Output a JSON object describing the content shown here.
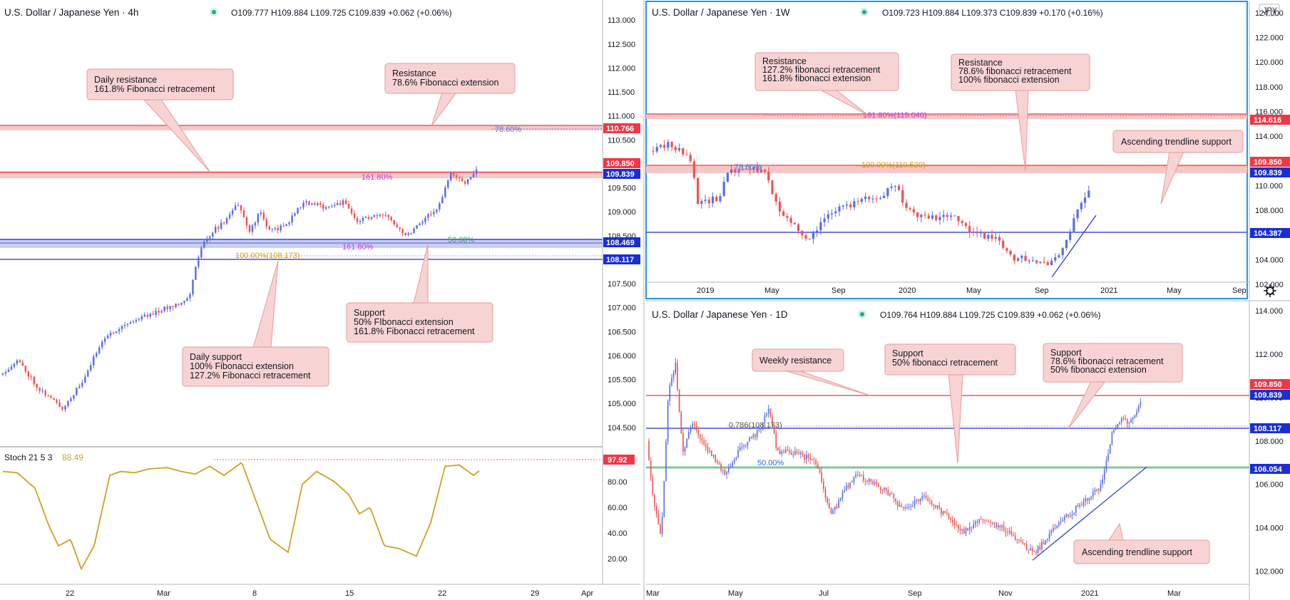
{
  "colors": {
    "up": "#5b6ee8",
    "down": "#ef5350",
    "resistance": "#e03c3c",
    "support": "#1f2fd6",
    "zone_red": "#f7c6c6",
    "zone_blue": "#c9cff5",
    "box_fill": "#f8d3d3",
    "box_stroke": "#e89a9a",
    "stoch": "#c9a227",
    "fib_pink": "#c23bd4",
    "fib_orange": "#d99a00",
    "fib_blue": "#5a7bd8",
    "fib_green": "#2e9e4f",
    "badge_red": "#f23645",
    "badge_blue": "#1a2ed6",
    "active_border": "#2196f3"
  },
  "panels": {
    "h4": {
      "title": "U.S. Dollar / Japanese Yen · 4h",
      "ohlc": "O109.777 H109.884 L109.725 C109.839 +0.062 (+0.06%)",
      "x_ticks": [
        "22",
        "Mar",
        "8",
        "15",
        "22",
        "29",
        "Apr"
      ],
      "y_ticks": [
        "113.000",
        "112.500",
        "112.000",
        "111.500",
        "111.000",
        "110.500",
        "110.000",
        "109.500",
        "109.000",
        "108.500",
        "108.000",
        "107.500",
        "107.000",
        "106.500",
        "106.000",
        "105.500",
        "105.000",
        "104.500"
      ],
      "badges": [
        "110.766",
        "109.850",
        "109.839",
        "108.469",
        "108.117"
      ],
      "fib_labels": [
        "78.60%",
        "161.80%",
        "161.80%",
        "50.00%",
        "100.00%(108.173)"
      ],
      "boxes": {
        "daily_resistance": [
          "Daily resistance",
          "161.8% Fibonacci retracement"
        ],
        "resistance": [
          "Resistance",
          "78.6% Fibonacci extension"
        ],
        "support": [
          "Support",
          "50% FIbonacci extension",
          "161.8% Fibonacci retracement"
        ],
        "daily_support": [
          "Daily support",
          "100% Fibonacci extension",
          "127.2% Fibonacci retracement"
        ]
      },
      "stoch": {
        "title": "Stoch 21 5 3",
        "value": "88.49",
        "badge": "97.92",
        "y_ticks": [
          "80.00",
          "60.00",
          "40.00",
          "20.00"
        ]
      }
    },
    "w1": {
      "title": "U.S. Dollar / Japanese Yen · 1W",
      "ohlc": "O109.723 H109.884 L109.373 C109.839 +0.170 (+0.16%)",
      "currency": "JPY",
      "x_ticks": [
        "2019",
        "May",
        "Sep",
        "2020",
        "May",
        "Sep",
        "2021",
        "May",
        "Sep"
      ],
      "y_ticks": [
        "124.000",
        "122.000",
        "120.000",
        "118.000",
        "116.000",
        "114.000",
        "112.000",
        "110.000",
        "108.000",
        "106.000",
        "104.000",
        "102.000"
      ],
      "badges": [
        "114.616",
        "109.850",
        "109.839",
        "104.387"
      ],
      "fib_labels": [
        "161.80%(115.040)",
        "100.00%(110.520)",
        "78.60%"
      ],
      "boxes": {
        "resistance_left": [
          "Resistance",
          "127.2% fibonacci retracement",
          "161.8% fibonacci extension"
        ],
        "resistance_right": [
          "Resistance",
          "78.6% fibonacci retracement",
          "100% fibonacci extension"
        ],
        "trendline": [
          "Ascending trendline support"
        ]
      }
    },
    "d1": {
      "title": "U.S. Dollar / Japanese Yen · 1D",
      "ohlc": "O109.764 H109.884 L109.725 C109.839 +0.062 (+0.06%)",
      "x_ticks": [
        "Mar",
        "May",
        "Jul",
        "Sep",
        "Nov",
        "2021",
        "Mar"
      ],
      "y_ticks": [
        "114.000",
        "112.000",
        "110.000",
        "108.000",
        "106.000",
        "104.000",
        "102.000"
      ],
      "badges": [
        "109.850",
        "109.839",
        "108.117",
        "106.054"
      ],
      "fib_labels": [
        "0.786(108.173)",
        "50.00%"
      ],
      "boxes": {
        "weekly_resistance": [
          "Weekly resistance"
        ],
        "support_50": [
          "Support",
          "50% fibonacci retracement"
        ],
        "support_786": [
          "Support",
          "78.6% fibonacci retracement",
          "50% fibonacci extension"
        ],
        "trendline": [
          "Ascending trendline support"
        ]
      }
    }
  },
  "chart_data": [
    {
      "type": "candlestick",
      "name": "h4",
      "title": "U.S. Dollar / Japanese Yen · 4h",
      "ylim": [
        104.2,
        113.3
      ],
      "x_ticks": [
        "22",
        "Mar",
        "8",
        "15",
        "22",
        "29",
        "Apr"
      ],
      "anchors": [
        [
          0,
          105.6
        ],
        [
          25,
          105.9
        ],
        [
          55,
          105.3
        ],
        [
          88,
          104.9
        ],
        [
          118,
          105.5
        ],
        [
          142,
          106.3
        ],
        [
          168,
          106.6
        ],
        [
          198,
          106.8
        ],
        [
          235,
          107.0
        ],
        [
          265,
          107.2
        ],
        [
          280,
          108.2
        ],
        [
          298,
          108.6
        ],
        [
          316,
          108.8
        ],
        [
          332,
          109.2
        ],
        [
          350,
          108.6
        ],
        [
          365,
          109.0
        ],
        [
          378,
          108.6
        ],
        [
          400,
          108.7
        ],
        [
          425,
          109.2
        ],
        [
          455,
          109.1
        ],
        [
          482,
          109.2
        ],
        [
          500,
          108.8
        ],
        [
          520,
          108.9
        ],
        [
          545,
          108.9
        ],
        [
          570,
          108.5
        ],
        [
          590,
          108.8
        ],
        [
          615,
          109.1
        ],
        [
          632,
          109.8
        ],
        [
          650,
          109.6
        ],
        [
          668,
          109.84
        ]
      ],
      "zones": [
        [
          110.73,
          110.82
        ],
        [
          109.82,
          109.89
        ],
        [
          108.35,
          108.48
        ]
      ],
      "lines": [
        108.117,
        108.47
      ],
      "stoch": {
        "ylim": [
          0,
          100
        ],
        "value": 88.49,
        "anchors": [
          [
            0,
            88
          ],
          [
            20,
            87
          ],
          [
            45,
            75
          ],
          [
            65,
            45
          ],
          [
            78,
            30
          ],
          [
            95,
            35
          ],
          [
            110,
            12
          ],
          [
            128,
            30
          ],
          [
            150,
            85
          ],
          [
            165,
            88
          ],
          [
            185,
            87
          ],
          [
            205,
            90
          ],
          [
            230,
            91
          ],
          [
            250,
            88
          ],
          [
            270,
            86
          ],
          [
            290,
            92
          ],
          [
            310,
            85
          ],
          [
            335,
            95
          ],
          [
            355,
            65
          ],
          [
            375,
            35
          ],
          [
            400,
            25
          ],
          [
            420,
            78
          ],
          [
            440,
            88
          ],
          [
            465,
            80
          ],
          [
            485,
            70
          ],
          [
            500,
            55
          ],
          [
            515,
            60
          ],
          [
            535,
            30
          ],
          [
            555,
            28
          ],
          [
            580,
            22
          ],
          [
            600,
            48
          ],
          [
            620,
            92
          ],
          [
            640,
            93
          ],
          [
            660,
            85
          ],
          [
            668,
            88.49
          ]
        ]
      }
    },
    {
      "type": "candlestick",
      "name": "w1",
      "title": "U.S. Dollar / Japanese Yen · 1W",
      "ylim": [
        100.8,
        124.8
      ],
      "x_ticks": [
        "2019",
        "May",
        "Sep",
        "2020",
        "May",
        "Sep",
        "2021",
        "May",
        "Sep"
      ],
      "anchors": [
        [
          4,
          112.8
        ],
        [
          35,
          113.4
        ],
        [
          62,
          112.0
        ],
        [
          72,
          108.5
        ],
        [
          100,
          109.0
        ],
        [
          115,
          111.0
        ],
        [
          145,
          111.5
        ],
        [
          168,
          110.8
        ],
        [
          185,
          108.0
        ],
        [
          215,
          106.5
        ],
        [
          225,
          105.5
        ],
        [
          260,
          108.0
        ],
        [
          300,
          108.8
        ],
        [
          330,
          109.2
        ],
        [
          350,
          110.2
        ],
        [
          360,
          108.5
        ],
        [
          375,
          107.8
        ],
        [
          395,
          107.2
        ],
        [
          420,
          107.8
        ],
        [
          450,
          106.5
        ],
        [
          470,
          106.0
        ],
        [
          495,
          105.5
        ],
        [
          515,
          104.2
        ],
        [
          550,
          104.0
        ],
        [
          565,
          103.5
        ],
        [
          585,
          104.8
        ],
        [
          600,
          107.5
        ],
        [
          615,
          109.0
        ],
        [
          620,
          109.84
        ]
      ],
      "zones": [
        [
          114.55,
          114.95
        ],
        [
          109.6,
          110.25
        ]
      ],
      "lines": [
        104.387
      ],
      "trendline": [
        [
          563,
          102.6
        ],
        [
          625,
          107.6
        ]
      ]
    },
    {
      "type": "candlestick",
      "name": "d1",
      "title": "U.S. Dollar / Japanese Yen · 1D",
      "ylim": [
        100.6,
        114.4
      ],
      "x_ticks": [
        "Mar",
        "May",
        "Jul",
        "Sep",
        "Nov",
        "2021",
        "Mar"
      ],
      "anchors": [
        [
          2,
          108.0
        ],
        [
          10,
          105.5
        ],
        [
          22,
          103.5
        ],
        [
          32,
          110.2
        ],
        [
          42,
          111.5
        ],
        [
          52,
          107.5
        ],
        [
          65,
          108.8
        ],
        [
          90,
          107.5
        ],
        [
          110,
          106.5
        ],
        [
          130,
          107.5
        ],
        [
          160,
          108.5
        ],
        [
          172,
          109.5
        ],
        [
          185,
          107.5
        ],
        [
          210,
          107.5
        ],
        [
          240,
          107.0
        ],
        [
          260,
          104.5
        ],
        [
          275,
          105.5
        ],
        [
          295,
          106.5
        ],
        [
          320,
          106.0
        ],
        [
          345,
          105.5
        ],
        [
          360,
          104.8
        ],
        [
          390,
          105.5
        ],
        [
          420,
          104.6
        ],
        [
          445,
          103.8
        ],
        [
          470,
          104.5
        ],
        [
          500,
          104.0
        ],
        [
          530,
          103.2
        ],
        [
          545,
          102.8
        ],
        [
          570,
          103.8
        ],
        [
          600,
          104.8
        ],
        [
          625,
          105.5
        ],
        [
          640,
          106.0
        ],
        [
          655,
          108.5
        ],
        [
          670,
          109.0
        ],
        [
          680,
          108.8
        ],
        [
          694,
          109.84
        ]
      ],
      "zones": [
        [
          106.0,
          106.1
        ]
      ],
      "lines": [
        109.85,
        108.117,
        106.054
      ],
      "trendline": [
        [
          540,
          102.5
        ],
        [
          700,
          106.8
        ]
      ]
    }
  ]
}
